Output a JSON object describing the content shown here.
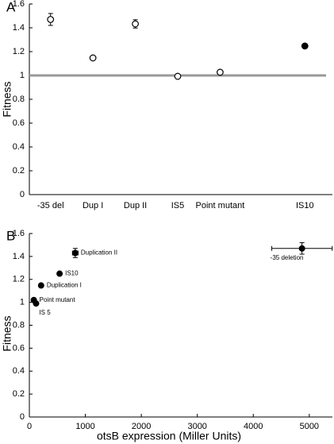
{
  "chart_data": [
    {
      "type": "errorbar-category",
      "panel": "A",
      "y_label": "Fitness",
      "categories": [
        "-35 del",
        "Dup I",
        "Dup II",
        "IS5",
        "Point mutant",
        null,
        "IS10"
      ],
      "values": [
        1.47,
        1.147,
        1.433,
        0.993,
        1.027,
        null,
        1.247
      ],
      "errors": [
        0.05,
        0.015,
        0.035,
        0.01,
        0.015,
        null,
        0.01
      ],
      "marker_fill": [
        "#ffffff",
        "#ffffff",
        "#ffffff",
        "#ffffff",
        "#ffffff",
        null,
        "#000000"
      ],
      "ylim": [
        0,
        1.6
      ],
      "yticks": [
        0,
        0.2,
        0.4,
        0.6,
        0.8,
        1,
        1.2,
        1.4,
        1.6
      ],
      "reference_line": 1
    },
    {
      "type": "scatter",
      "panel": "B",
      "y_label": "Fitness",
      "x_label": "otsB expression (Miller Units)",
      "labels": [
        "-35 deletion",
        "Duplication II",
        "IS10",
        "Duplication I",
        "Point mutant",
        "IS 5"
      ],
      "x": [
        4870,
        820,
        540,
        210,
        80,
        120
      ],
      "values": [
        1.47,
        1.43,
        1.25,
        1.147,
        1.02,
        0.99
      ],
      "x_errors": [
        540,
        50,
        0,
        0,
        0,
        0
      ],
      "y_errors": [
        0.05,
        0.04,
        0,
        0,
        0,
        0
      ],
      "xlim": [
        0,
        5300
      ],
      "xticks": [
        0,
        1000,
        2000,
        3000,
        4000,
        5000
      ],
      "ylim": [
        0,
        1.6
      ],
      "yticks": [
        0,
        0.2,
        0.4,
        0.6,
        0.8,
        1,
        1.2,
        1.4,
        1.6
      ]
    }
  ]
}
